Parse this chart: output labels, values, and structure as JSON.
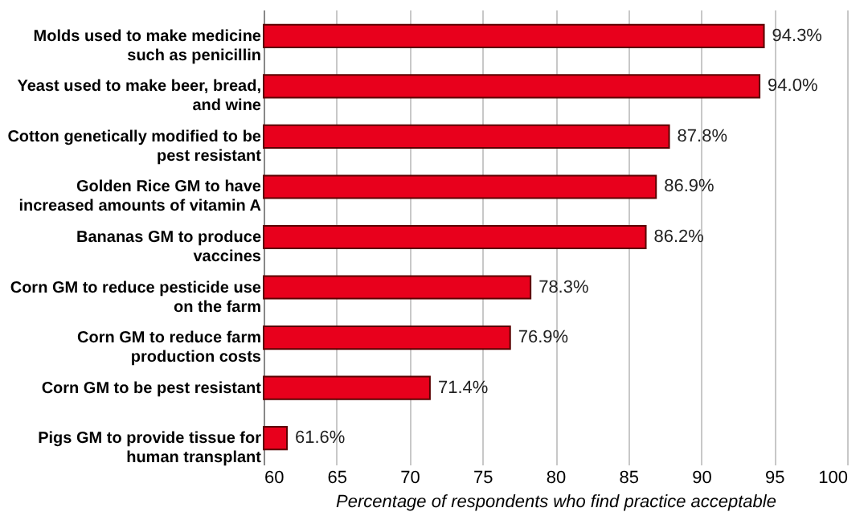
{
  "chart_data": {
    "type": "bar",
    "orientation": "horizontal",
    "categories": [
      "Molds used to make medicine\nsuch as penicillin",
      "Yeast used to make beer, bread,\nand wine",
      "Cotton genetically modified to be\npest resistant",
      "Golden Rice GM to have\nincreased amounts of vitamin A",
      "Bananas GM to produce\nvaccines",
      "Corn GM to reduce pesticide use\non the farm",
      "Corn GM to reduce farm\nproduction costs",
      "Corn GM to be pest resistant",
      "Pigs GM to provide tissue for\nhuman transplant"
    ],
    "values": [
      94.3,
      94.0,
      87.8,
      86.9,
      86.2,
      78.3,
      76.9,
      71.4,
      61.6
    ],
    "value_labels": [
      "94.3%",
      "94.0%",
      "87.8%",
      "86.9%",
      "86.2%",
      "78.3%",
      "76.9%",
      "71.4%",
      "61.6%"
    ],
    "color": "#e8001c",
    "xlabel": "Percentage of respondents who find practice acceptable",
    "xlim": [
      60,
      100
    ],
    "xticks": [
      60,
      65,
      70,
      75,
      80,
      85,
      90,
      95,
      100
    ],
    "grid": "x"
  }
}
